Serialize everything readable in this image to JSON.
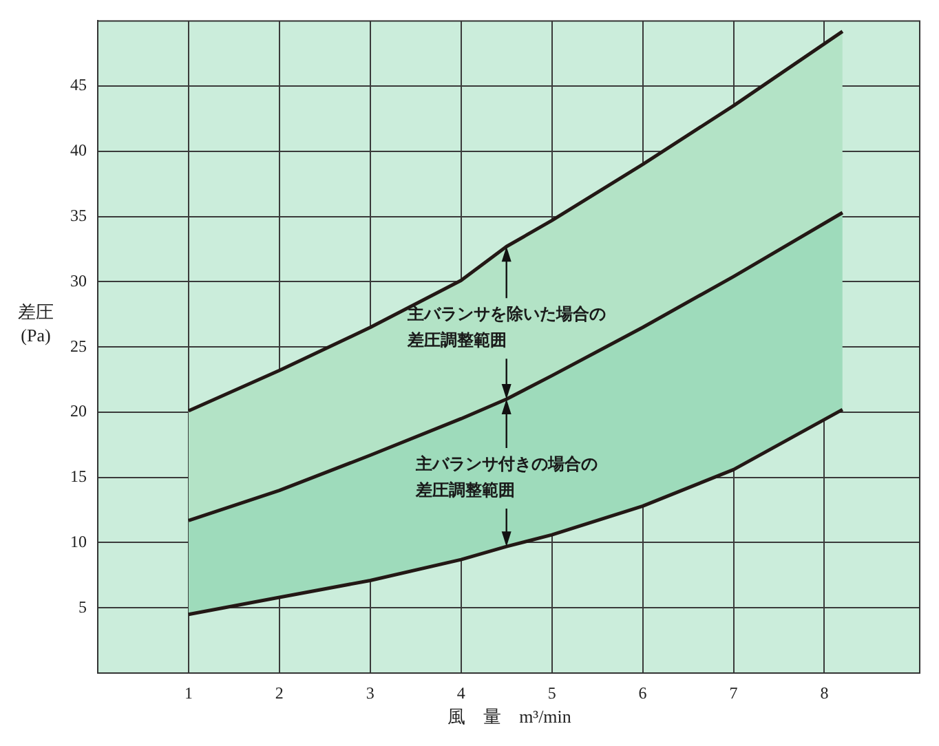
{
  "chart_data": {
    "type": "line",
    "xlabel": "風　量　m³/min",
    "ylabel": "差圧\n(Pa)",
    "x": [
      1,
      2,
      3,
      4,
      4.5,
      5,
      6,
      7,
      8.2
    ],
    "series": [
      {
        "type": "area",
        "color": "#b3e3c6",
        "values": [
          20.1,
          23.2,
          26.5,
          30.1,
          32.7,
          34.7,
          39,
          43.5,
          49.2
        ]
      },
      {
        "type": "area",
        "color": "#9edbbb",
        "values": [
          11.7,
          14,
          16.7,
          19.5,
          21,
          22.8,
          26.5,
          30.4,
          35.3
        ]
      },
      {
        "color": "#231815",
        "values": [
          4.5,
          5.8,
          7.1,
          8.7,
          9.7,
          10.6,
          12.8,
          15.6,
          20.2
        ]
      }
    ],
    "annotations": [
      {
        "text": "主バランサを除いた場合の差圧調整範囲",
        "x": 4.5,
        "y": 32.7
      },
      {
        "text": "主バランサ付きの場合の差圧調整範囲",
        "x": 4.5,
        "y": 21
      }
    ],
    "xlim": [
      0,
      9.05
    ],
    "xticks": [
      1,
      2,
      3,
      4,
      5,
      6,
      7,
      8
    ],
    "ylim": [
      0,
      50
    ],
    "yticks": [
      5,
      10,
      15,
      20,
      25,
      30,
      35,
      40,
      45
    ],
    "grid": true,
    "legend": false,
    "marker": "none",
    "line_style": "solid"
  }
}
